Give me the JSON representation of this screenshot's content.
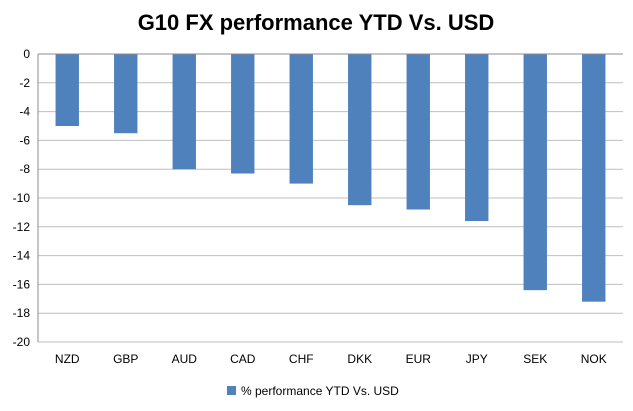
{
  "chart_data": {
    "type": "bar",
    "title": "G10 FX performance YTD Vs. USD",
    "categories": [
      "NZD",
      "GBP",
      "AUD",
      "CAD",
      "CHF",
      "DKK",
      "EUR",
      "JPY",
      "SEK",
      "NOK"
    ],
    "series": [
      {
        "name": "% performance YTD Vs. USD",
        "values": [
          -5.0,
          -5.5,
          -8.0,
          -8.3,
          -9.0,
          -10.5,
          -10.8,
          -11.6,
          -16.4,
          -17.2
        ],
        "color": "#4f81bd"
      }
    ],
    "ylim": [
      -20,
      0
    ],
    "yticks": [
      "0",
      "-2",
      "-4",
      "-6",
      "-8",
      "-10",
      "-12",
      "-14",
      "-16",
      "-18",
      "-20"
    ],
    "grid": true,
    "legend_position": "bottom"
  }
}
